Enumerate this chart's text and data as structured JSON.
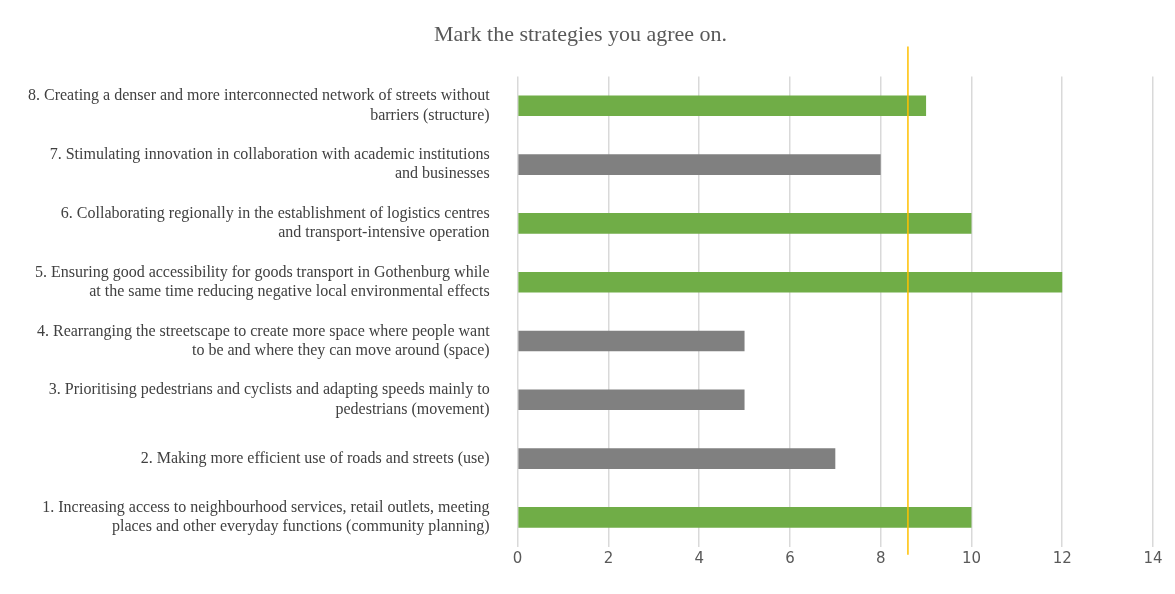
{
  "chart_data": {
    "type": "bar",
    "orientation": "horizontal",
    "title": "Mark the strategies you agree on.",
    "categories": [
      "8. Creating a denser and more interconnected network of streets without barriers (structure)",
      "7. Stimulating innovation in collaboration with academic institutions and businesses",
      "6. Collaborating regionally in the establishment of logistics centres and transport-intensive operation",
      "5. Ensuring good accessibility for goods transport in Gothenburg while at the same time reducing negative local environmental effects",
      "4. Rearranging the streetscape to create more space where people want to be and where they can move around (space)",
      "3. Prioritising pedestrians and cyclists and adapting speeds mainly to pedestrians (movement)",
      "2. Making more efficient use of roads and streets (use)",
      "1. Increasing access to neighbourhood services, retail outlets, meeting places and other everyday functions (community planning)"
    ],
    "values": [
      9,
      8,
      10,
      12,
      5,
      5,
      7,
      10
    ],
    "colors": [
      "#70ad47",
      "#808080",
      "#70ad47",
      "#70ad47",
      "#808080",
      "#808080",
      "#808080",
      "#70ad47"
    ],
    "xlim": [
      0,
      14
    ],
    "xticks": [
      0,
      2,
      4,
      6,
      8,
      10,
      12,
      14
    ],
    "grid": "x",
    "legend": false,
    "ref_lines": [
      {
        "axis": "x",
        "value": 8.6,
        "color": "#ffc000"
      }
    ]
  }
}
